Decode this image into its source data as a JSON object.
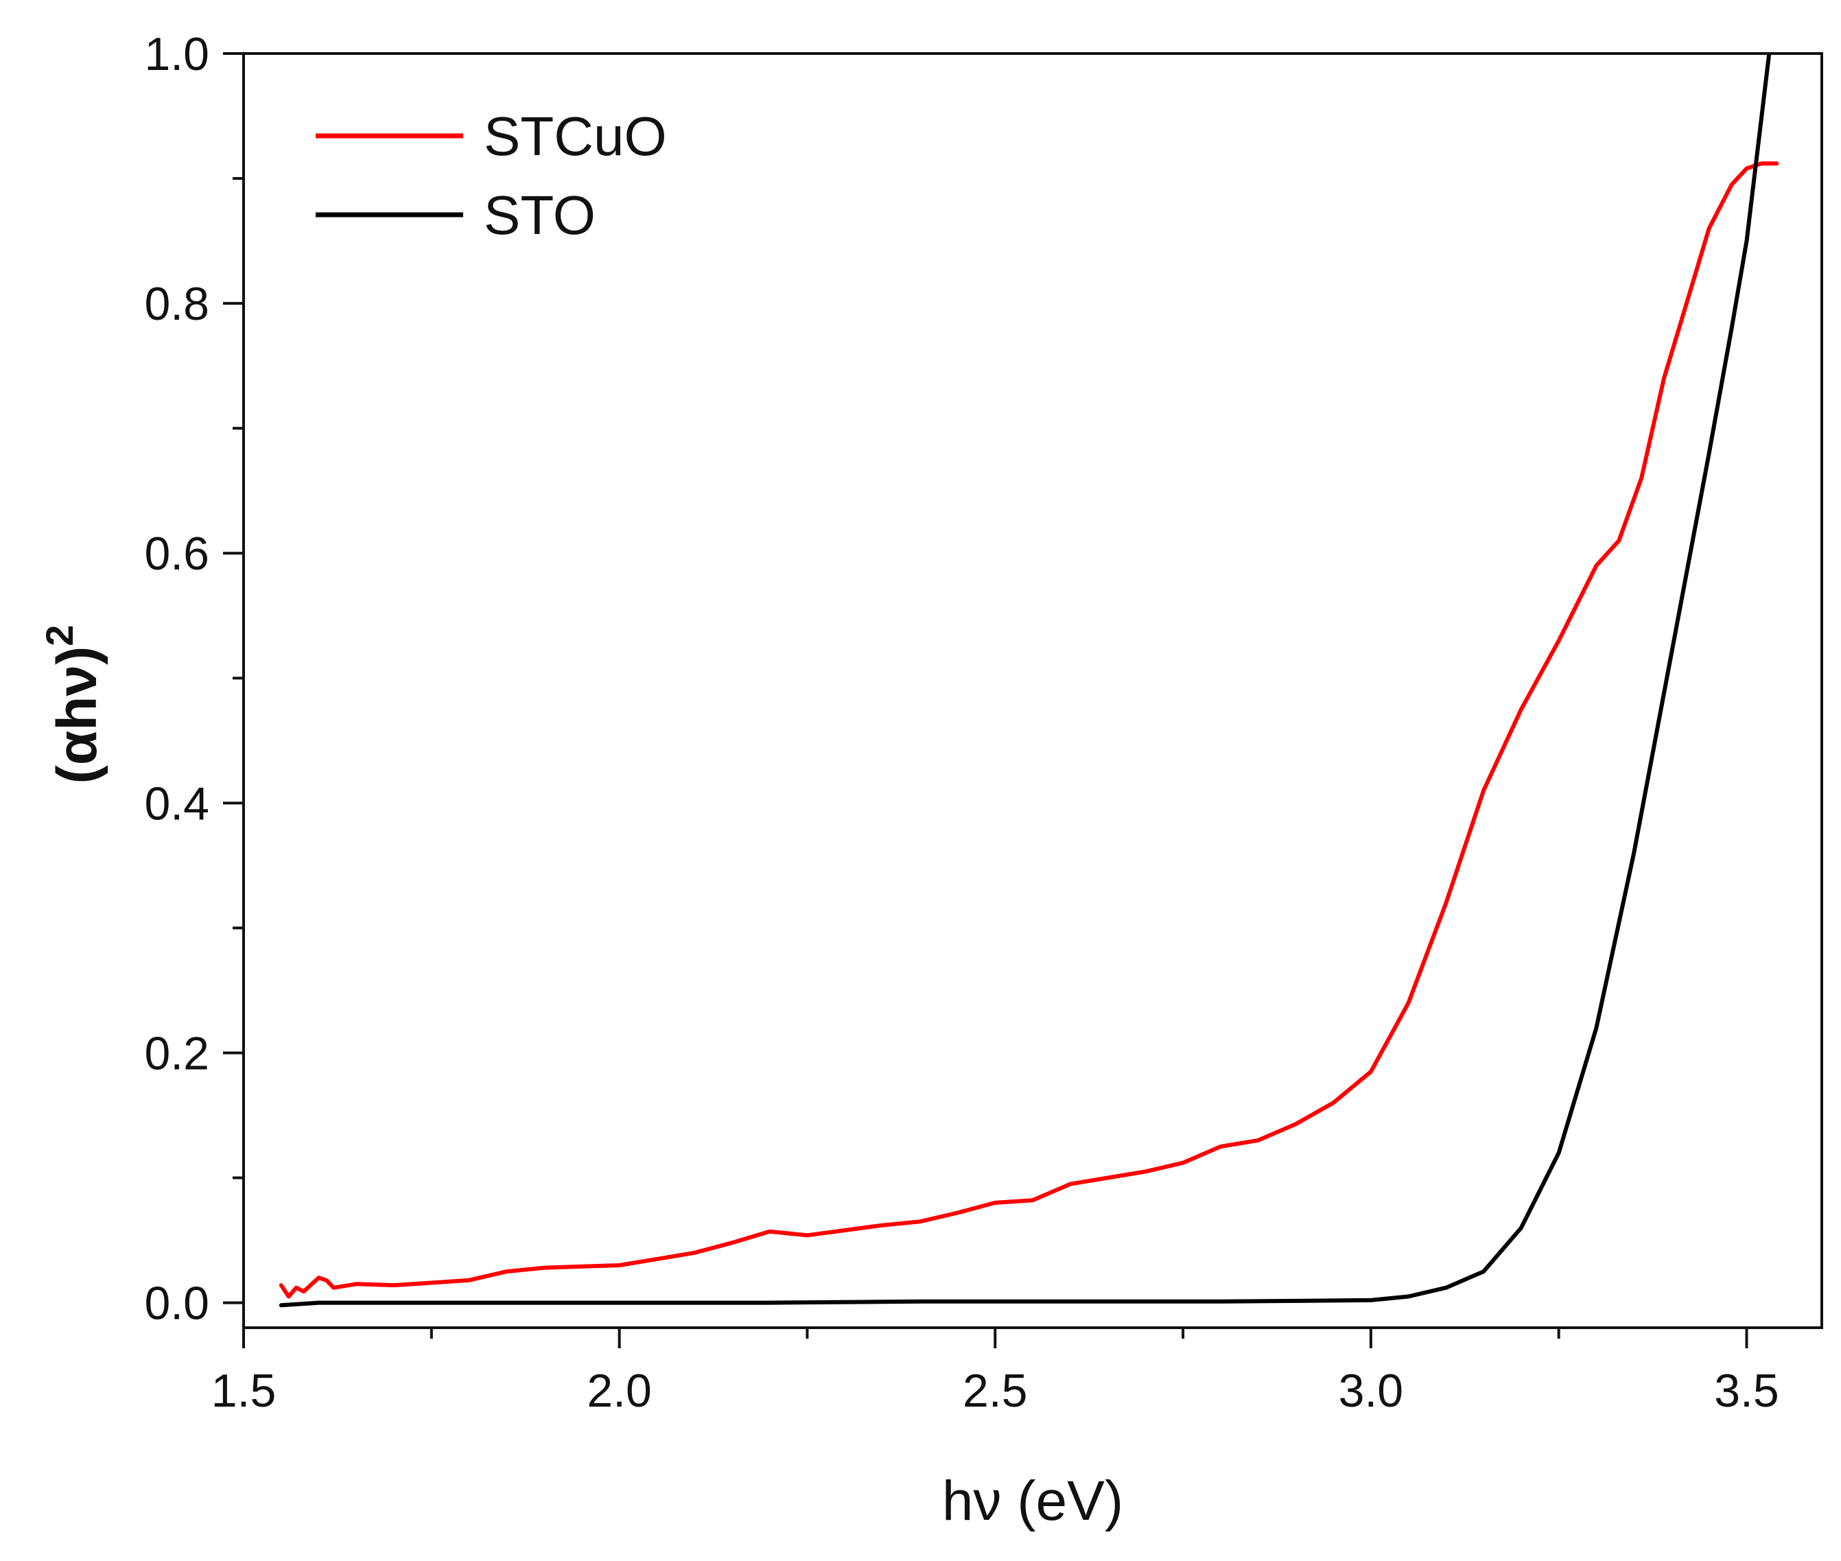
{
  "chart_data": {
    "type": "line",
    "title": "",
    "xlabel": "hν (eV)",
    "ylabel": "(αhν)²",
    "ylabel_parts": {
      "base": "(αhν)",
      "sup": "2"
    },
    "xlim": [
      1.5,
      3.6
    ],
    "ylim": [
      -0.02,
      1.0
    ],
    "x_ticks": [
      {
        "value": 1.5,
        "label": "1.5"
      },
      {
        "value": 2.0,
        "label": "2.0"
      },
      {
        "value": 2.5,
        "label": "2.5"
      },
      {
        "value": 3.0,
        "label": "3.0"
      },
      {
        "value": 3.5,
        "label": "3.5"
      }
    ],
    "y_ticks": [
      {
        "value": 0.0,
        "label": "0.0"
      },
      {
        "value": 0.2,
        "label": "0.2"
      },
      {
        "value": 0.4,
        "label": "0.4"
      },
      {
        "value": 0.6,
        "label": "0.6"
      },
      {
        "value": 0.8,
        "label": "0.8"
      },
      {
        "value": 1.0,
        "label": "1.0"
      }
    ],
    "x_minor_step": 0.25,
    "y_minor_step": 0.1,
    "grid": false,
    "legend_position": "top-left",
    "series": [
      {
        "name": "STCuO",
        "color": "#ff0000",
        "points": [
          [
            1.55,
            0.014
          ],
          [
            1.56,
            0.005
          ],
          [
            1.57,
            0.012
          ],
          [
            1.58,
            0.009
          ],
          [
            1.6,
            0.02
          ],
          [
            1.61,
            0.018
          ],
          [
            1.62,
            0.012
          ],
          [
            1.65,
            0.015
          ],
          [
            1.7,
            0.014
          ],
          [
            1.75,
            0.016
          ],
          [
            1.8,
            0.018
          ],
          [
            1.85,
            0.025
          ],
          [
            1.9,
            0.028
          ],
          [
            1.95,
            0.029
          ],
          [
            2.0,
            0.03
          ],
          [
            2.05,
            0.035
          ],
          [
            2.1,
            0.04
          ],
          [
            2.15,
            0.048
          ],
          [
            2.2,
            0.057
          ],
          [
            2.25,
            0.054
          ],
          [
            2.3,
            0.058
          ],
          [
            2.35,
            0.062
          ],
          [
            2.4,
            0.065
          ],
          [
            2.45,
            0.072
          ],
          [
            2.5,
            0.08
          ],
          [
            2.55,
            0.082
          ],
          [
            2.6,
            0.095
          ],
          [
            2.65,
            0.1
          ],
          [
            2.7,
            0.105
          ],
          [
            2.75,
            0.112
          ],
          [
            2.8,
            0.125
          ],
          [
            2.85,
            0.13
          ],
          [
            2.9,
            0.143
          ],
          [
            2.95,
            0.16
          ],
          [
            3.0,
            0.185
          ],
          [
            3.05,
            0.24
          ],
          [
            3.1,
            0.32
          ],
          [
            3.15,
            0.41
          ],
          [
            3.2,
            0.475
          ],
          [
            3.25,
            0.53
          ],
          [
            3.3,
            0.59
          ],
          [
            3.33,
            0.61
          ],
          [
            3.36,
            0.66
          ],
          [
            3.39,
            0.74
          ],
          [
            3.42,
            0.8
          ],
          [
            3.45,
            0.86
          ],
          [
            3.48,
            0.895
          ],
          [
            3.5,
            0.908
          ],
          [
            3.52,
            0.912
          ],
          [
            3.54,
            0.912
          ]
        ]
      },
      {
        "name": "STO",
        "color": "#000000",
        "points": [
          [
            1.55,
            -0.002
          ],
          [
            1.6,
            0.0
          ],
          [
            1.8,
            0.0
          ],
          [
            2.0,
            0.0
          ],
          [
            2.2,
            0.0
          ],
          [
            2.4,
            0.001
          ],
          [
            2.6,
            0.001
          ],
          [
            2.8,
            0.001
          ],
          [
            3.0,
            0.002
          ],
          [
            3.05,
            0.005
          ],
          [
            3.1,
            0.012
          ],
          [
            3.15,
            0.025
          ],
          [
            3.2,
            0.06
          ],
          [
            3.25,
            0.12
          ],
          [
            3.3,
            0.22
          ],
          [
            3.35,
            0.36
          ],
          [
            3.4,
            0.52
          ],
          [
            3.45,
            0.68
          ],
          [
            3.48,
            0.78
          ],
          [
            3.5,
            0.85
          ],
          [
            3.52,
            0.95
          ],
          [
            3.53,
            1.0
          ]
        ]
      }
    ]
  }
}
